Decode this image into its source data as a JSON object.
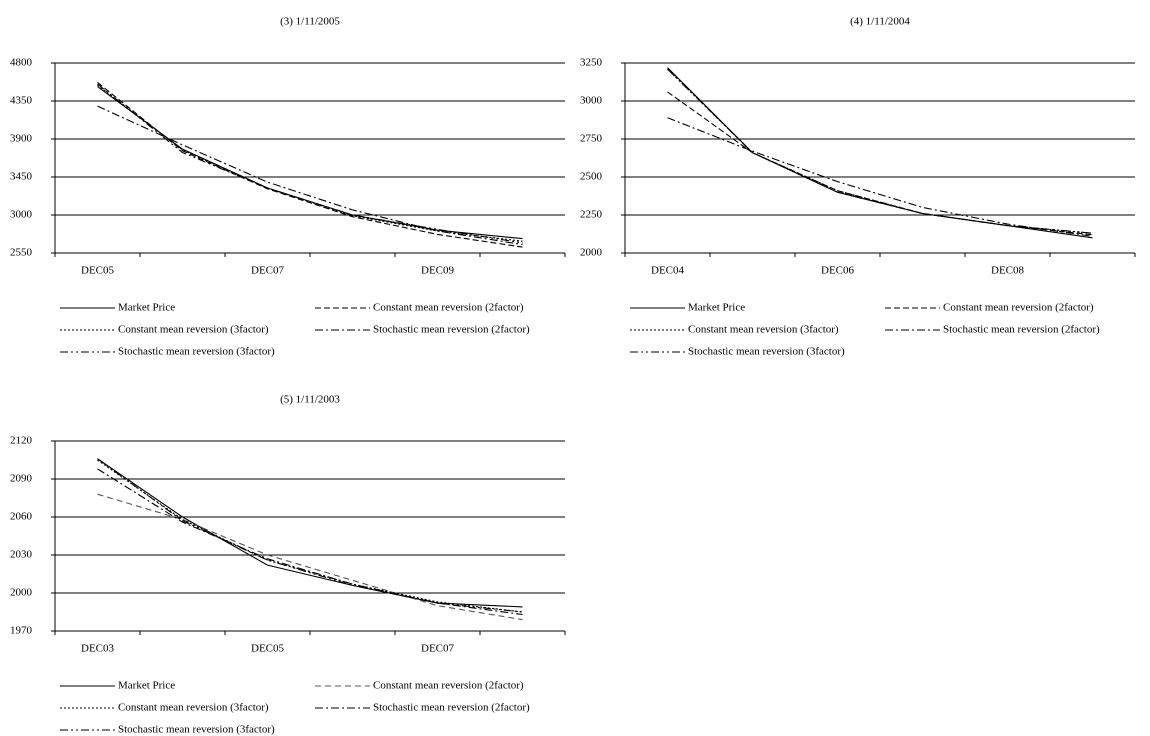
{
  "chart_data": [
    {
      "type": "line",
      "title": "(3) 1/11/2005",
      "categories": [
        "DEC05",
        null,
        "DEC07",
        null,
        "DEC09",
        null
      ],
      "ylim": [
        2550,
        4800
      ],
      "yticks": [
        2550,
        3000,
        3450,
        3900,
        4350,
        4800
      ],
      "grid": true,
      "legend": "bottom",
      "series": [
        {
          "name": "Market Price",
          "color": "#000000",
          "style": "solid",
          "values": [
            4520,
            3780,
            3320,
            3000,
            2820,
            2720
          ]
        },
        {
          "name": "Constant mean reversion (2factor)",
          "color": "#000000",
          "style": "dashed",
          "values": [
            4570,
            3760,
            3310,
            2980,
            2770,
            2620
          ]
        },
        {
          "name": "Constant mean reversion (3factor)",
          "color": "#000000",
          "style": "dotted",
          "values": [
            4540,
            3770,
            3320,
            2990,
            2810,
            2690
          ]
        },
        {
          "name": "Stochastic mean reversion (2factor)",
          "color": "#000000",
          "style": "dashdot",
          "values": [
            4290,
            3830,
            3390,
            3060,
            2810,
            2650
          ]
        },
        {
          "name": "Stochastic mean reversion (3factor)",
          "color": "#000000",
          "style": "dashdotdot",
          "values": [
            4550,
            3740,
            3320,
            3000,
            2830,
            2670
          ]
        }
      ]
    },
    {
      "type": "line",
      "title": "(4) 1/11/2004",
      "categories": [
        "DEC04",
        null,
        "DEC06",
        null,
        "DEC08",
        null
      ],
      "ylim": [
        2000,
        3250
      ],
      "yticks": [
        2000,
        2250,
        2500,
        2750,
        3000,
        3250
      ],
      "grid": true,
      "legend": "bottom",
      "series": [
        {
          "name": "Market Price",
          "color": "#000000",
          "style": "solid",
          "values": [
            3220,
            2660,
            2400,
            2260,
            2180,
            2100
          ]
        },
        {
          "name": "Constant mean reversion (2factor)",
          "color": "#000000",
          "style": "dashed",
          "values": [
            3060,
            2660,
            2410,
            2260,
            2180,
            2120
          ]
        },
        {
          "name": "Constant mean reversion (3factor)",
          "color": "#000000",
          "style": "dotted",
          "values": [
            3210,
            2660,
            2410,
            2260,
            2180,
            2130
          ]
        },
        {
          "name": "Stochastic mean reversion (2factor)",
          "color": "#000000",
          "style": "dashdot",
          "values": [
            2890,
            2670,
            2470,
            2300,
            2190,
            2110
          ]
        },
        {
          "name": "Stochastic mean reversion (3factor)",
          "color": "#000000",
          "style": "dashdotdot",
          "values": [
            3210,
            2660,
            2400,
            2260,
            2180,
            2130
          ]
        }
      ]
    },
    {
      "type": "line",
      "title": "(5) 1/11/2003",
      "categories": [
        "DEC03",
        null,
        "DEC05",
        null,
        "DEC07",
        null
      ],
      "ylim": [
        1970,
        2120
      ],
      "yticks": [
        1970,
        2000,
        2030,
        2060,
        2090,
        2120
      ],
      "grid": true,
      "legend": "bottom",
      "series": [
        {
          "name": "Market Price",
          "color": "#000000",
          "style": "solid",
          "values": [
            2106,
            2060,
            2022,
            2006,
            1992,
            1989
          ]
        },
        {
          "name": "Constant mean reversion (2factor)",
          "color": "#555555",
          "style": "longdash",
          "values": [
            2078,
            2058,
            2030,
            2010,
            1990,
            1979
          ]
        },
        {
          "name": "Constant mean reversion (3factor)",
          "color": "#000000",
          "style": "dotted",
          "values": [
            2105,
            2058,
            2026,
            2007,
            1993,
            1985
          ]
        },
        {
          "name": "Stochastic mean reversion (2factor)",
          "color": "#000000",
          "style": "dashdot",
          "values": [
            2098,
            2056,
            2027,
            2007,
            1992,
            1983
          ]
        },
        {
          "name": "Stochastic mean reversion (3factor)",
          "color": "#000000",
          "style": "dashdotdot",
          "values": [
            2106,
            2057,
            2026,
            2006,
            1992,
            1985
          ]
        }
      ]
    }
  ]
}
